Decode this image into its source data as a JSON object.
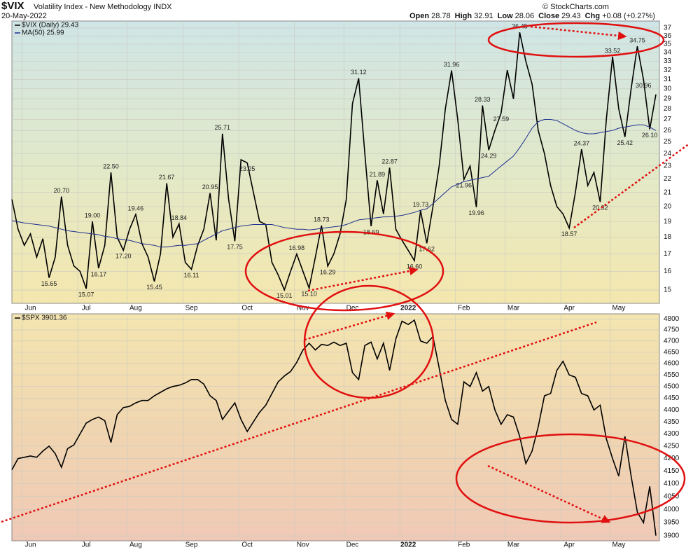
{
  "header": {
    "symbol": "$VIX",
    "name": "Volatility Index - New Methodology INDX",
    "date": "20-May-2022",
    "credit": "© StockCharts.com",
    "quote": [
      {
        "label": "Open",
        "value": "28.78"
      },
      {
        "label": "High",
        "value": "32.91"
      },
      {
        "label": "Low",
        "value": "28.06"
      },
      {
        "label": "Close",
        "value": "29.43"
      },
      {
        "label": "Chg",
        "value": "+0.08 (+0.27%)"
      }
    ]
  },
  "chart_data": [
    {
      "type": "line",
      "log": true,
      "grid": true,
      "categories": [
        null,
        null,
        null,
        "Jun",
        null,
        null,
        null,
        null,
        null,
        null,
        null,
        null,
        "Jul",
        null,
        null,
        null,
        null,
        null,
        null,
        null,
        "Aug",
        null,
        null,
        null,
        null,
        null,
        null,
        null,
        null,
        "Sep",
        null,
        null,
        null,
        null,
        null,
        null,
        null,
        null,
        "Oct",
        null,
        null,
        null,
        null,
        null,
        null,
        null,
        null,
        "Nov",
        null,
        null,
        null,
        null,
        null,
        null,
        null,
        "Dec",
        null,
        null,
        null,
        null,
        null,
        null,
        null,
        null,
        "2022",
        null,
        null,
        null,
        null,
        null,
        null,
        null,
        null,
        "Feb",
        null,
        null,
        null,
        null,
        null,
        null,
        null,
        "Mar",
        null,
        null,
        null,
        null,
        null,
        null,
        null,
        null,
        "Apr",
        null,
        null,
        null,
        null,
        null,
        null,
        null,
        "May",
        null,
        null,
        null,
        null,
        null,
        null
      ],
      "ylim": [
        14.33,
        37.9
      ],
      "yticks": [
        15,
        16,
        17,
        18,
        19,
        20,
        21,
        22,
        23,
        24,
        25,
        26,
        27,
        28,
        29,
        30,
        31,
        32,
        33,
        34,
        35,
        36,
        37
      ],
      "series": [
        {
          "name": "$VIX (Daily) 29.43",
          "color": "#000000",
          "values": [
            20.5,
            18.5,
            17.5,
            18.2,
            16.8,
            17.9,
            15.65,
            16.8,
            20.7,
            17.5,
            16.3,
            16.0,
            15.07,
            19.0,
            16.17,
            17.5,
            22.5,
            18.0,
            17.2,
            18.5,
            19.46,
            17.6,
            16.8,
            15.45,
            17.0,
            21.67,
            18.0,
            18.84,
            16.5,
            16.11,
            17.5,
            18.5,
            20.95,
            17.8,
            25.71,
            20.5,
            17.75,
            23.5,
            23.25,
            21.0,
            19.0,
            18.8,
            16.5,
            15.8,
            15.01,
            16.0,
            16.98,
            16.0,
            15.1,
            16.8,
            18.73,
            16.29,
            17.0,
            18.2,
            20.5,
            28.5,
            31.12,
            24.0,
            18.69,
            21.89,
            19.5,
            22.87,
            18.5,
            17.8,
            17.2,
            16.6,
            19.73,
            17.62,
            20.0,
            23.0,
            28.0,
            31.96,
            27.0,
            21.96,
            23.0,
            19.96,
            28.33,
            24.29,
            26.0,
            27.59,
            32.0,
            29.0,
            36.45,
            33.0,
            30.5,
            26.0,
            24.0,
            21.5,
            20.0,
            19.5,
            18.57,
            21.0,
            24.37,
            21.5,
            22.5,
            20.32,
            27.0,
            33.52,
            28.0,
            25.42,
            30.0,
            34.75,
            30.96,
            26.1,
            29.43
          ],
          "value_labels": [
            null,
            null,
            null,
            null,
            null,
            null,
            "15.65",
            null,
            "20.70",
            null,
            null,
            null,
            "15.07",
            "19.00",
            "16.17",
            null,
            "22.50",
            null,
            "17.20",
            null,
            "19.46",
            null,
            null,
            "15.45",
            null,
            "21.67",
            null,
            "18.84",
            null,
            "16.11",
            null,
            null,
            "20.95",
            null,
            "25.71",
            null,
            "17.75",
            null,
            "23.25",
            null,
            null,
            null,
            null,
            null,
            "15.01",
            null,
            "16.98",
            null,
            "15.10",
            null,
            "18.73",
            "16.29",
            null,
            null,
            null,
            null,
            "31.12",
            null,
            "18.69",
            "21.89",
            null,
            "22.87",
            null,
            null,
            null,
            "16.60",
            "19.73",
            "17.62",
            null,
            null,
            null,
            "31.96",
            null,
            "21.96",
            null,
            "19.96",
            "28.33",
            "24.29",
            null,
            "27.59",
            null,
            null,
            "36.45",
            null,
            null,
            null,
            null,
            null,
            null,
            null,
            "18.57",
            null,
            "24.37",
            null,
            null,
            "20.32",
            null,
            "33.52",
            null,
            "25.42",
            null,
            "34.75",
            "30.96",
            "26.10",
            null
          ]
        },
        {
          "name": "MA(50) 25.99",
          "color": "#1f2f8f",
          "values": [
            19.05,
            18.98,
            18.9,
            18.85,
            18.8,
            18.75,
            18.7,
            18.6,
            18.5,
            18.4,
            18.35,
            18.3,
            18.25,
            18.2,
            18.15,
            18.05,
            18.0,
            17.9,
            17.85,
            17.8,
            17.7,
            17.6,
            17.55,
            17.5,
            17.4,
            17.4,
            17.45,
            17.5,
            17.5,
            17.55,
            17.6,
            17.8,
            18.0,
            18.2,
            18.4,
            18.5,
            18.6,
            18.7,
            18.75,
            18.8,
            18.8,
            18.8,
            18.8,
            18.7,
            18.6,
            18.55,
            18.5,
            18.5,
            18.45,
            18.5,
            18.55,
            18.6,
            18.65,
            18.7,
            18.8,
            18.95,
            19.1,
            19.15,
            19.2,
            19.25,
            19.3,
            19.3,
            19.35,
            19.4,
            19.5,
            19.6,
            19.75,
            19.85,
            20.2,
            20.6,
            21.0,
            21.4,
            21.6,
            21.8,
            21.9,
            22.0,
            22.1,
            22.2,
            22.6,
            23.0,
            23.4,
            23.8,
            24.5,
            25.3,
            26.2,
            26.8,
            27.0,
            27.0,
            26.9,
            26.6,
            26.3,
            26.0,
            25.8,
            25.7,
            25.7,
            25.8,
            25.9,
            26.0,
            26.2,
            26.3,
            26.4,
            26.5,
            26.5,
            26.3,
            25.99
          ]
        }
      ]
    },
    {
      "type": "line",
      "log": true,
      "grid": true,
      "categories": [
        null,
        null,
        null,
        "Jun",
        null,
        null,
        null,
        null,
        null,
        null,
        null,
        null,
        "Jul",
        null,
        null,
        null,
        null,
        null,
        null,
        null,
        "Aug",
        null,
        null,
        null,
        null,
        null,
        null,
        null,
        null,
        "Sep",
        null,
        null,
        null,
        null,
        null,
        null,
        null,
        null,
        "Oct",
        null,
        null,
        null,
        null,
        null,
        null,
        null,
        null,
        "Nov",
        null,
        null,
        null,
        null,
        null,
        null,
        null,
        "Dec",
        null,
        null,
        null,
        null,
        null,
        null,
        null,
        null,
        "2022",
        null,
        null,
        null,
        null,
        null,
        null,
        null,
        null,
        "Feb",
        null,
        null,
        null,
        null,
        null,
        null,
        null,
        "Mar",
        null,
        null,
        null,
        null,
        null,
        null,
        null,
        null,
        "Apr",
        null,
        null,
        null,
        null,
        null,
        null,
        null,
        "May",
        null,
        null,
        null,
        null,
        null,
        null
      ],
      "ylim": [
        3882,
        4824
      ],
      "yticks": [
        3900,
        3950,
        4000,
        4050,
        4100,
        4150,
        4200,
        4250,
        4300,
        4350,
        4400,
        4450,
        4500,
        4550,
        4600,
        4650,
        4700,
        4750,
        4800
      ],
      "series": [
        {
          "name": "$SPX 3901.36",
          "color": "#000000",
          "values": [
            4155,
            4200,
            4205,
            4210,
            4205,
            4230,
            4250,
            4220,
            4165,
            4240,
            4255,
            4300,
            4345,
            4360,
            4370,
            4355,
            4265,
            4380,
            4410,
            4415,
            4430,
            4440,
            4440,
            4460,
            4475,
            4490,
            4500,
            4505,
            4515,
            4530,
            4530,
            4510,
            4460,
            4440,
            4360,
            4395,
            4430,
            4360,
            4310,
            4350,
            4390,
            4420,
            4470,
            4520,
            4545,
            4565,
            4605,
            4660,
            4690,
            4660,
            4685,
            4680,
            4695,
            4680,
            4690,
            4560,
            4530,
            4680,
            4695,
            4620,
            4690,
            4570,
            4710,
            4790,
            4775,
            4795,
            4700,
            4690,
            4720,
            4580,
            4440,
            4360,
            4340,
            4520,
            4500,
            4560,
            4480,
            4500,
            4400,
            4340,
            4380,
            4370,
            4290,
            4180,
            4230,
            4330,
            4460,
            4470,
            4570,
            4610,
            4550,
            4540,
            4470,
            4460,
            4400,
            4420,
            4280,
            4200,
            4130,
            4290,
            4130,
            3990,
            3950,
            4090,
            3901.36
          ]
        }
      ]
    }
  ]
}
